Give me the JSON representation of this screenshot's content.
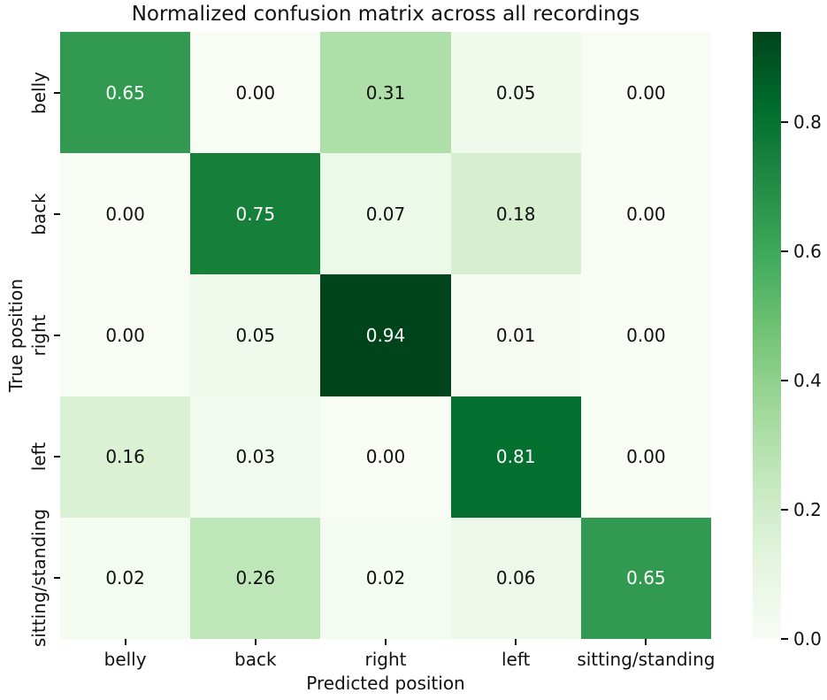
{
  "chart_data": {
    "type": "heatmap",
    "title": "Normalized confusion matrix across all recordings",
    "xlabel": "Predicted position",
    "ylabel": "True position",
    "x_categories": [
      "belly",
      "back",
      "right",
      "left",
      "sitting/standing"
    ],
    "y_categories": [
      "belly",
      "back",
      "right",
      "left",
      "sitting/standing"
    ],
    "matrix": [
      [
        0.65,
        0.0,
        0.31,
        0.05,
        0.0
      ],
      [
        0.0,
        0.75,
        0.07,
        0.18,
        0.0
      ],
      [
        0.0,
        0.05,
        0.94,
        0.01,
        0.0
      ],
      [
        0.16,
        0.03,
        0.0,
        0.81,
        0.0
      ],
      [
        0.02,
        0.26,
        0.02,
        0.06,
        0.65
      ]
    ],
    "vmin": 0.0,
    "vmax": 0.94,
    "cell_value_format": "two_decimals",
    "annotation_text_colors": {
      "on_dark": "#ffffff",
      "on_light": "#111111"
    },
    "colormap": {
      "name": "Greens",
      "colors": [
        "#f7fcf5",
        "#e5f5e0",
        "#c7e9c0",
        "#a1d99b",
        "#74c476",
        "#41ab5d",
        "#238b45",
        "#006d2c",
        "#00441b"
      ]
    },
    "colorbar": {
      "position": "right",
      "tick_labels": [
        "0.0",
        "0.2",
        "0.4",
        "0.6",
        "0.8"
      ]
    },
    "grid": false,
    "legend": false
  }
}
